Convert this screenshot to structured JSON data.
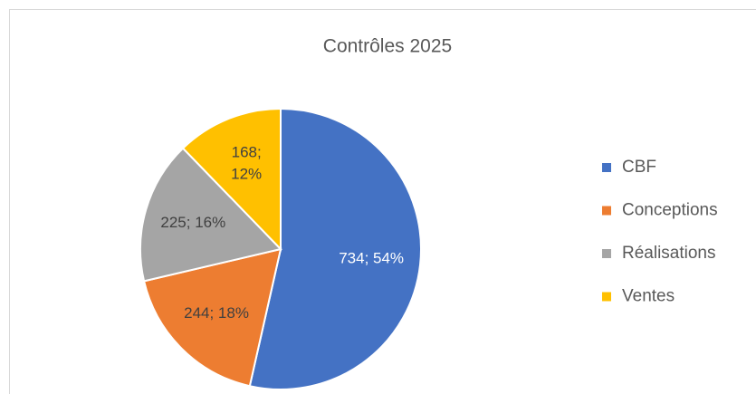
{
  "chart_data": {
    "type": "pie",
    "title": "Contrôles 2025",
    "categories": [
      "CBF",
      "Conceptions",
      "Réalisations",
      "Ventes"
    ],
    "values": [
      734,
      244,
      225,
      168
    ],
    "value_labels": [
      "734; 54%",
      "244; 18%",
      "225; 16%",
      "168; 12%"
    ],
    "colors": [
      "#4472c4",
      "#ed7d31",
      "#a5a5a5",
      "#ffc000"
    ],
    "legend": "right"
  }
}
